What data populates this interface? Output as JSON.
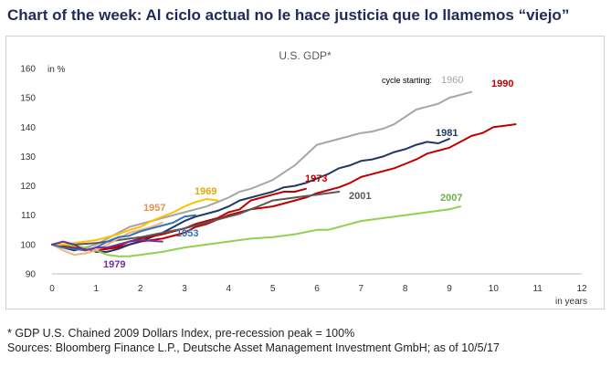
{
  "header": {
    "title": "Chart of the week: Al ciclo actual no le hace justicia que lo llamemos “viejo”"
  },
  "footer": {
    "footnote": "* GDP U.S. Chained 2009 Dollars Index, pre-recession peak = 100%",
    "sources": "Sources: Bloomberg Finance L.P., Deutsche Asset Management Investment GmbH; as of 10/5/17"
  },
  "chart_data": {
    "type": "line",
    "title": "U.S. GDP*",
    "ylabel": "in %",
    "xlabel": "in years",
    "xlim": [
      0,
      12
    ],
    "ylim": [
      90,
      160
    ],
    "xticks": [
      0,
      1,
      2,
      3,
      4,
      5,
      6,
      7,
      8,
      9,
      10,
      11,
      12
    ],
    "yticks": [
      90,
      100,
      110,
      120,
      130,
      140,
      150,
      160
    ],
    "grid": false,
    "legend_note": "cycle starting:",
    "series": [
      {
        "name": "1960",
        "color": "#a6a6a6",
        "x": [
          0,
          0.25,
          0.5,
          0.75,
          1,
          1.25,
          1.5,
          1.75,
          2,
          2.5,
          3,
          3.5,
          4,
          4.25,
          4.5,
          4.75,
          5,
          5.5,
          6,
          6.25,
          6.5,
          6.75,
          7,
          7.25,
          7.5,
          7.75,
          8,
          8.25,
          8.5,
          8.75,
          9,
          9.5
        ],
        "y": [
          100,
          99,
          98,
          99,
          100,
          102,
          104,
          106,
          107,
          109,
          111,
          113,
          116,
          118,
          119,
          120.5,
          122,
          127,
          134,
          135,
          136,
          137,
          138,
          138.5,
          139.5,
          141,
          143.5,
          146,
          147,
          148,
          150,
          152
        ]
      },
      {
        "name": "1990",
        "color": "#c00000",
        "x": [
          0,
          0.5,
          1,
          1.5,
          2,
          2.5,
          3,
          3.25,
          3.5,
          3.75,
          4,
          4.25,
          4.5,
          4.75,
          5,
          5.25,
          5.5,
          5.75,
          6,
          6.25,
          6.5,
          6.75,
          7,
          7.25,
          7.5,
          7.75,
          8,
          8.25,
          8.5,
          8.75,
          9,
          9.25,
          9.5,
          9.75,
          10,
          10.25,
          10.5
        ],
        "y": [
          100,
          99,
          98,
          99,
          101,
          102,
          104,
          106,
          107,
          108.5,
          110,
          111,
          112,
          112.5,
          113,
          114,
          115,
          116,
          117.5,
          118.5,
          119.5,
          121,
          123,
          124,
          125,
          126,
          127.5,
          129,
          131,
          132,
          133,
          135,
          137,
          138,
          140,
          140.5,
          141
        ]
      },
      {
        "name": "1981",
        "color": "#1f3864",
        "x": [
          0,
          0.25,
          0.5,
          0.75,
          1,
          1.25,
          1.5,
          1.75,
          2,
          2.25,
          2.5,
          2.75,
          3,
          3.25,
          3.5,
          3.75,
          4,
          4.25,
          4.5,
          4.75,
          5,
          5.25,
          5.5,
          5.75,
          6,
          6.25,
          6.5,
          6.75,
          7,
          7.25,
          7.5,
          7.75,
          8,
          8.25,
          8.5,
          8.75,
          9
        ],
        "y": [
          100,
          99,
          98,
          99,
          97.5,
          97.5,
          98.5,
          100,
          101,
          102.5,
          104,
          106,
          108,
          109.5,
          110.5,
          111.5,
          113,
          115,
          116,
          117,
          118,
          119.5,
          120,
          121,
          122.5,
          124,
          126,
          127,
          128.5,
          129,
          130,
          131.5,
          132.5,
          134,
          135,
          134.5,
          136
        ]
      },
      {
        "name": "1973",
        "color": "#c00000",
        "x": [
          0,
          0.25,
          0.5,
          0.75,
          1,
          1.25,
          1.5,
          1.75,
          2,
          2.5,
          3,
          3.25,
          3.5,
          3.75,
          4,
          4.25,
          4.5,
          4.75,
          5,
          5.25,
          5.5,
          5.75
        ],
        "y": [
          100,
          99.5,
          99,
          98.5,
          98,
          98.5,
          99.5,
          101,
          102,
          103.5,
          105.5,
          107,
          108,
          109,
          111,
          112,
          115,
          116,
          117,
          118,
          118,
          119
        ]
      },
      {
        "name": "2001",
        "color": "#595959",
        "x": [
          0,
          0.5,
          1,
          1.5,
          2,
          2.5,
          3,
          3.5,
          4,
          4.25,
          4.5,
          4.75,
          5,
          5.5,
          6,
          6.25,
          6.5
        ],
        "y": [
          100,
          100,
          100.5,
          101.5,
          102.5,
          104,
          105.5,
          107.5,
          109.5,
          110.5,
          112,
          113.5,
          115,
          116,
          117,
          117.5,
          118
        ]
      },
      {
        "name": "2007",
        "color": "#92d050",
        "x": [
          0,
          0.25,
          0.5,
          0.75,
          1,
          1.25,
          1.5,
          1.75,
          2,
          2.5,
          3,
          3.5,
          4,
          4.5,
          5,
          5.5,
          6,
          6.25,
          6.5,
          6.75,
          7,
          7.5,
          8,
          8.5,
          9,
          9.25
        ],
        "y": [
          100,
          100,
          99.5,
          99,
          98,
          96.5,
          96,
          96,
          96.5,
          97.5,
          99,
          100,
          101,
          102,
          102.5,
          103.5,
          105,
          105,
          106,
          107,
          108,
          109,
          110,
          111,
          112,
          113
        ]
      },
      {
        "name": "1969",
        "color": "#ffc000",
        "x": [
          0,
          0.25,
          0.5,
          0.75,
          1,
          1.25,
          1.5,
          1.75,
          2,
          2.25,
          2.5,
          2.75,
          3,
          3.25,
          3.5,
          3.75
        ],
        "y": [
          100,
          100,
          100.5,
          101,
          101.5,
          102.5,
          103.5,
          105,
          106,
          108,
          109.5,
          111,
          113,
          114.5,
          115.5,
          115
        ]
      },
      {
        "name": "1957",
        "color": "#f4b183",
        "x": [
          0,
          0.25,
          0.5,
          0.75,
          1,
          1.25,
          1.5,
          1.75,
          2,
          2.25,
          2.5
        ],
        "y": [
          100,
          98,
          96.5,
          97,
          98,
          100,
          102,
          104,
          105,
          106,
          107.5
        ]
      },
      {
        "name": "1953",
        "color": "#2e75b6",
        "x": [
          0,
          0.25,
          0.5,
          0.75,
          1,
          1.25,
          1.5,
          1.75,
          2,
          2.25,
          2.5,
          2.75,
          3,
          3.25
        ],
        "y": [
          100,
          99,
          98.5,
          98,
          99,
          101,
          102.5,
          103,
          104.5,
          105.5,
          106.5,
          107.5,
          109.5,
          110
        ]
      },
      {
        "name": "1979",
        "color": "#7030a0",
        "x": [
          0,
          0.25,
          0.5,
          0.75,
          1,
          1.25,
          1.5,
          1.75,
          2,
          2.5
        ],
        "y": [
          100,
          101,
          100,
          98,
          99,
          99,
          100,
          101,
          101.5,
          101
        ]
      }
    ]
  }
}
